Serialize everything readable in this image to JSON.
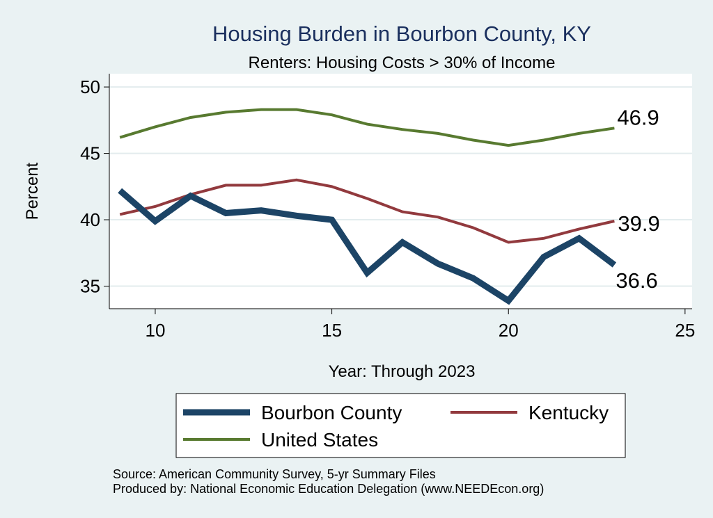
{
  "chart_data": {
    "type": "line",
    "title": "Housing Burden in Bourbon County, KY",
    "subtitle": "Renters: Housing Costs > 30% of Income",
    "xlabel": "Year: Through 2023",
    "ylabel": "Percent",
    "xlim": [
      8.7,
      25.2
    ],
    "ylim": [
      33.3,
      51.0
    ],
    "x_ticks": [
      10,
      15,
      20,
      25
    ],
    "y_ticks": [
      35,
      40,
      45,
      50
    ],
    "grid": true,
    "legend_position": "bottom",
    "x": [
      9,
      10,
      11,
      12,
      13,
      14,
      15,
      16,
      17,
      18,
      19,
      20,
      21,
      22,
      23
    ],
    "series": [
      {
        "name": "Bourbon County",
        "color": "#1c4466",
        "width": 9,
        "values": [
          42.2,
          39.9,
          41.8,
          40.5,
          40.7,
          40.3,
          40.0,
          36.0,
          38.3,
          36.7,
          35.6,
          33.9,
          37.2,
          38.6,
          36.6
        ],
        "end_label": "36.6"
      },
      {
        "name": "Kentucky",
        "color": "#923a3e",
        "width": 4,
        "values": [
          40.4,
          41.0,
          41.9,
          42.6,
          42.6,
          43.0,
          42.5,
          41.6,
          40.6,
          40.2,
          39.4,
          38.3,
          38.6,
          39.3,
          39.9
        ],
        "end_label": "39.9"
      },
      {
        "name": "United States",
        "color": "#587a30",
        "width": 4,
        "values": [
          46.2,
          47.0,
          47.7,
          48.1,
          48.3,
          48.3,
          47.9,
          47.2,
          46.8,
          46.5,
          46.0,
          45.6,
          46.0,
          46.5,
          46.9
        ],
        "end_label": "46.9"
      }
    ],
    "notes": [
      "Source: American Community Survey, 5-yr Summary Files",
      "Produced by: National Economic Education Delegation (www.NEEDEcon.org)"
    ]
  }
}
